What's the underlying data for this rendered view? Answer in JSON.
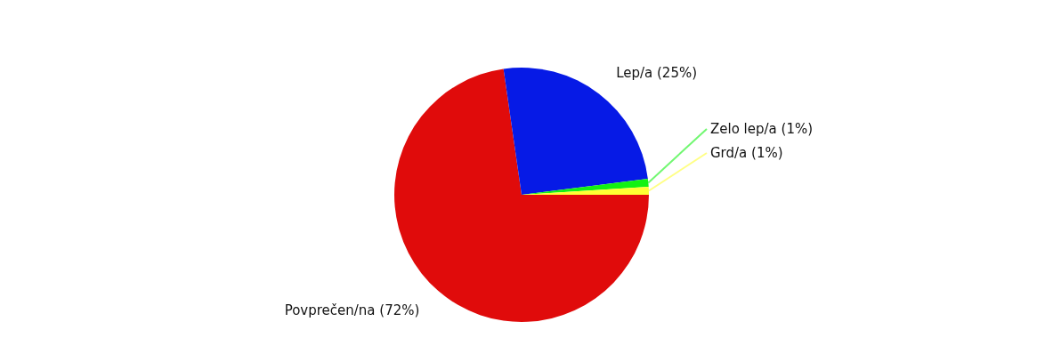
{
  "chart_data": {
    "type": "pie",
    "categories": [
      "Povprečen/na (72%)",
      "Lep/a (25%)",
      "Zelo lep/a (1%)",
      "Grd/a (1%)"
    ],
    "values": [
      72,
      25,
      1,
      1
    ],
    "colors": [
      "#e00b0b",
      "#061ae6",
      "#12f212",
      "#ffff33"
    ]
  }
}
